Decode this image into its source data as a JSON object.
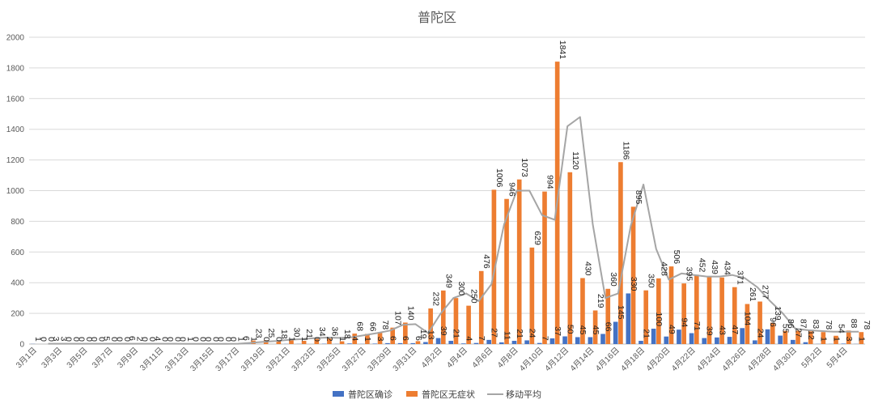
{
  "chart_data": {
    "type": "bar",
    "title": "普陀区",
    "categories": [
      "3月1日",
      "3月2日",
      "3月3日",
      "3月4日",
      "3月5日",
      "3月6日",
      "3月7日",
      "3月8日",
      "3月9日",
      "3月10日",
      "3月11日",
      "3月12日",
      "3月13日",
      "3月14日",
      "3月15日",
      "3月16日",
      "3月17日",
      "3月18日",
      "3月19日",
      "3月20日",
      "3月21日",
      "3月22日",
      "3月23日",
      "3月24日",
      "3月25日",
      "3月26日",
      "3月27日",
      "3月28日",
      "3月29日",
      "3月30日",
      "3月31日",
      "4月1日",
      "4月2日",
      "4月3日",
      "4月4日",
      "4月5日",
      "4月6日",
      "4月7日",
      "4月8日",
      "4月9日",
      "4月10日",
      "4月11日",
      "4月12日",
      "4月13日",
      "4月14日",
      "4月15日",
      "4月16日",
      "4月17日",
      "4月18日",
      "4月19日",
      "4月20日",
      "4月21日",
      "4月22日",
      "4月23日",
      "4月24日",
      "4月25日",
      "4月26日",
      "4月27日",
      "4月28日",
      "4月29日",
      "4月30日",
      "5月1日",
      "5月2日",
      "5月3日",
      "5月4日",
      "5月5日"
    ],
    "tick_labels": [
      "3月1日",
      "3月3日",
      "3月5日",
      "3月7日",
      "3月9日",
      "3月11日",
      "3月13日",
      "3月15日",
      "3月17日",
      "3月19日",
      "3月21日",
      "3月23日",
      "3月25日",
      "3月27日",
      "3月29日",
      "3月31日",
      "4月2日",
      "4月4日",
      "4月6日",
      "4月8日",
      "4月10日",
      "4月12日",
      "4月14日",
      "4月16日",
      "4月18日",
      "4月20日",
      "4月22日",
      "4月24日",
      "4月26日",
      "4月28日",
      "4月30日",
      "5月2日",
      "5月4日"
    ],
    "series": [
      {
        "name": "普陀区确诊",
        "color": "#4472c4",
        "values": [
          1,
          0,
          3,
          0,
          0,
          0,
          0,
          0,
          2,
          0,
          0,
          0,
          1,
          0,
          0,
          0,
          1,
          1,
          0,
          0,
          1,
          1,
          0,
          2,
          1,
          4,
          1,
          3,
          6,
          6,
          6,
          13,
          39,
          21,
          4,
          7,
          27,
          11,
          21,
          24,
          7,
          37,
          50,
          45,
          45,
          66,
          145,
          330,
          21,
          100,
          49,
          94,
          71,
          39,
          43,
          47,
          104,
          24,
          96,
          55,
          27,
          12,
          1,
          1,
          3,
          1
        ]
      },
      {
        "name": "普陀区无症状",
        "color": "#ed7d31",
        "values": [
          0,
          3,
          0,
          0,
          0,
          5,
          0,
          6,
          0,
          4,
          0,
          0,
          0,
          0,
          0,
          0,
          6,
          23,
          25,
          18,
          30,
          21,
          34,
          36,
          18,
          68,
          66,
          78,
          107,
          140,
          19,
          232,
          349,
          300,
          250,
          476,
          1006,
          946,
          1073,
          629,
          994,
          1841,
          1120,
          430,
          219,
          360,
          1186,
          895,
          350,
          428,
          506,
          395,
          452,
          439,
          434,
          371,
          261,
          277,
          139,
          86,
          87,
          83,
          78,
          54,
          88,
          78
        ]
      },
      {
        "name": "移动平均",
        "color": "#a5a5a5",
        "type": "line",
        "values": [
          null,
          2,
          2,
          2,
          2,
          2,
          2,
          2,
          2,
          2,
          2,
          2,
          1,
          1,
          1,
          1,
          2,
          8,
          15,
          20,
          28,
          32,
          38,
          42,
          40,
          45,
          58,
          72,
          88,
          125,
          130,
          72,
          200,
          300,
          330,
          280,
          390,
          780,
          1000,
          1000,
          840,
          810,
          1420,
          1480,
          780,
          300,
          330,
          770,
          1040,
          620,
          420,
          460,
          450,
          440,
          440,
          450,
          430,
          370,
          280,
          200,
          100,
          90,
          85,
          80,
          80,
          80
        ]
      }
    ],
    "y_label_values": [
      1,
      0,
      3,
      0,
      0,
      0,
      0,
      0,
      2,
      0,
      0,
      0,
      1,
      0,
      0,
      0,
      1,
      1,
      0,
      0,
      1,
      1,
      0,
      2,
      1,
      4,
      1,
      3,
      6,
      6,
      6,
      13,
      39,
      21,
      4,
      7,
      27,
      11,
      21,
      24,
      7,
      37,
      50,
      45,
      45,
      66,
      145,
      330,
      21,
      100,
      49,
      94,
      71,
      39,
      43,
      47,
      104,
      24,
      96,
      55,
      27,
      12,
      1,
      1,
      3,
      1
    ],
    "ylim": [
      0,
      2000
    ],
    "yticks": [
      0,
      200,
      400,
      600,
      800,
      1000,
      1200,
      1400,
      1600,
      1800,
      2000
    ],
    "grid": true,
    "legend_position": "bottom"
  }
}
